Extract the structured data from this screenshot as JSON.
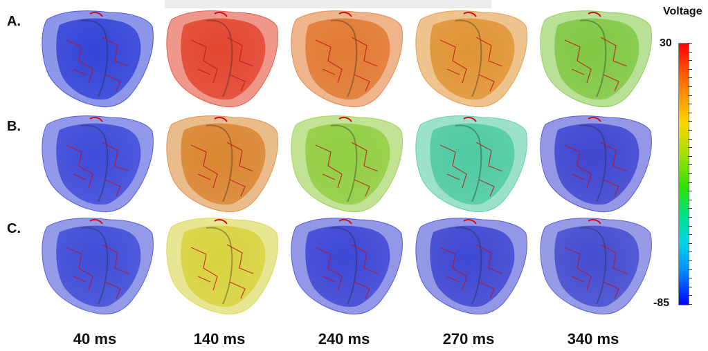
{
  "row_labels": [
    "A.",
    "B.",
    "C."
  ],
  "time_labels": [
    "40 ms",
    "140 ms",
    "240 ms",
    "270 ms",
    "340 ms"
  ],
  "legend": {
    "title": "Voltage",
    "max": "30",
    "min": "-85"
  },
  "colors": {
    "A": [
      "#2f3fd6",
      "#e2412b",
      "#e0772d",
      "#e0912f",
      "#7ec63f"
    ],
    "B": [
      "#3a46d8",
      "#d9832c",
      "#8fcc3d",
      "#4bc9a0",
      "#3a42cf"
    ],
    "C": [
      "#3b48d6",
      "#d7d23a",
      "#3942d4",
      "#3a43d1",
      "#4048cf"
    ]
  }
}
